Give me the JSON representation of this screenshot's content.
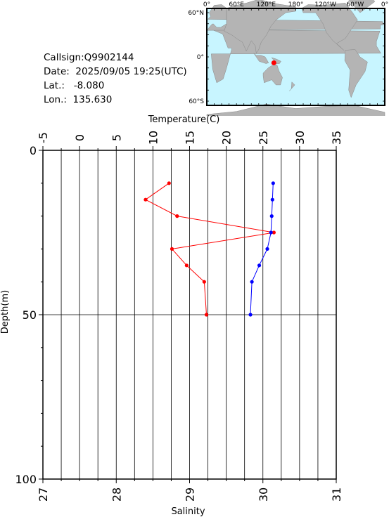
{
  "station": {
    "callsign": "Callsign:Q9902144",
    "date": "Date:  2025/09/05 19:25(UTC)",
    "lat": "Lat.:   -8.080",
    "lon": "Lon.:  135.630"
  },
  "map": {
    "lon_labels": [
      "0°",
      "60°E",
      "120°E",
      "180°",
      "120°W",
      "60°W",
      "0°"
    ],
    "lat_labels": [
      "60°N",
      "0°",
      "60°S"
    ],
    "ocean_color": "#c8f5ff",
    "land_color": "#b4b4b4",
    "marker_color": "#ff0000",
    "marker_lon": 135.63,
    "marker_lat": -8.08
  },
  "chart_data": {
    "type": "line",
    "ylabel": "Depth(m)",
    "ylim": [
      0,
      100
    ],
    "y_inverted": true,
    "y_ticks": [
      "0",
      "50",
      "100"
    ],
    "temperature_axis": {
      "label": "Temperature(C)",
      "lim": [
        -5,
        35
      ],
      "ticks": [
        "-5",
        "0",
        "5",
        "10",
        "15",
        "20",
        "25",
        "30",
        "35"
      ]
    },
    "salinity_axis": {
      "label": "Salinity",
      "lim": [
        27,
        31
      ],
      "ticks": [
        "27",
        "28",
        "29",
        "30",
        "31"
      ]
    },
    "grid": true,
    "series": [
      {
        "axis": "temperature",
        "color": "#ff0000",
        "points": [
          {
            "x": 12.2,
            "depth": 10
          },
          {
            "x": 9.0,
            "depth": 15
          },
          {
            "x": 13.3,
            "depth": 20
          },
          {
            "x": 26.5,
            "depth": 25
          },
          {
            "x": 12.6,
            "depth": 30
          },
          {
            "x": 14.6,
            "depth": 35
          },
          {
            "x": 17.0,
            "depth": 40
          },
          {
            "x": 17.3,
            "depth": 50
          }
        ]
      },
      {
        "axis": "salinity",
        "color": "#0000ff",
        "points": [
          {
            "x": 30.14,
            "depth": 10
          },
          {
            "x": 30.13,
            "depth": 15
          },
          {
            "x": 30.12,
            "depth": 20
          },
          {
            "x": 30.11,
            "depth": 25
          },
          {
            "x": 30.06,
            "depth": 30
          },
          {
            "x": 29.95,
            "depth": 35
          },
          {
            "x": 29.85,
            "depth": 40
          },
          {
            "x": 29.83,
            "depth": 50
          }
        ]
      }
    ]
  }
}
